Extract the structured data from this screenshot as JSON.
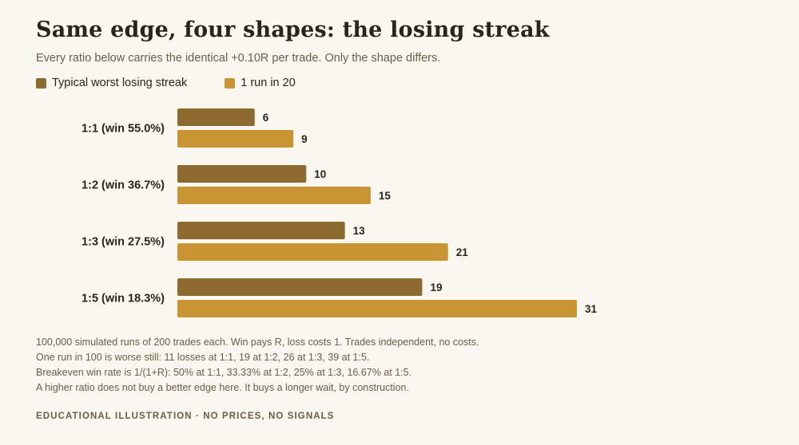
{
  "title": "Same edge, four shapes: the losing streak",
  "subtitle": "Every ratio below carries the identical +0.10R per trade. Only the shape differs.",
  "colors": {
    "typical": "#8c6a30",
    "tail": "#c99433",
    "background": "#faf7f1"
  },
  "chart_data": {
    "type": "bar",
    "orientation": "horizontal",
    "categories": [
      "1:1 (win 55.0%)",
      "1:2 (win 36.7%)",
      "1:3 (win 27.5%)",
      "1:5 (win 18.3%)"
    ],
    "series": [
      {
        "name": "Typical worst losing streak",
        "values": [
          6,
          10,
          13,
          19
        ]
      },
      {
        "name": "1 run in 20",
        "values": [
          9,
          15,
          21,
          31
        ]
      }
    ],
    "xlim": [
      0,
      31
    ],
    "grid": false,
    "legend_position": "top-left",
    "data_labels": true
  },
  "notes": [
    "100,000 simulated runs of 200 trades each. Win pays R, loss costs 1. Trades independent, no costs.",
    "One run in 100 is worse still: 11 losses at 1:1, 19 at 1:2, 26 at 1:3, 39 at 1:5.",
    "Breakeven win rate is 1/(1+R): 50% at 1:1, 33.33% at 1:2, 25% at 1:3, 16.67% at 1:5.",
    "A higher ratio does not buy a better edge here. It buys a longer wait, by construction."
  ],
  "footer": "EDUCATIONAL ILLUSTRATION · NO PRICES, NO SIGNALS"
}
